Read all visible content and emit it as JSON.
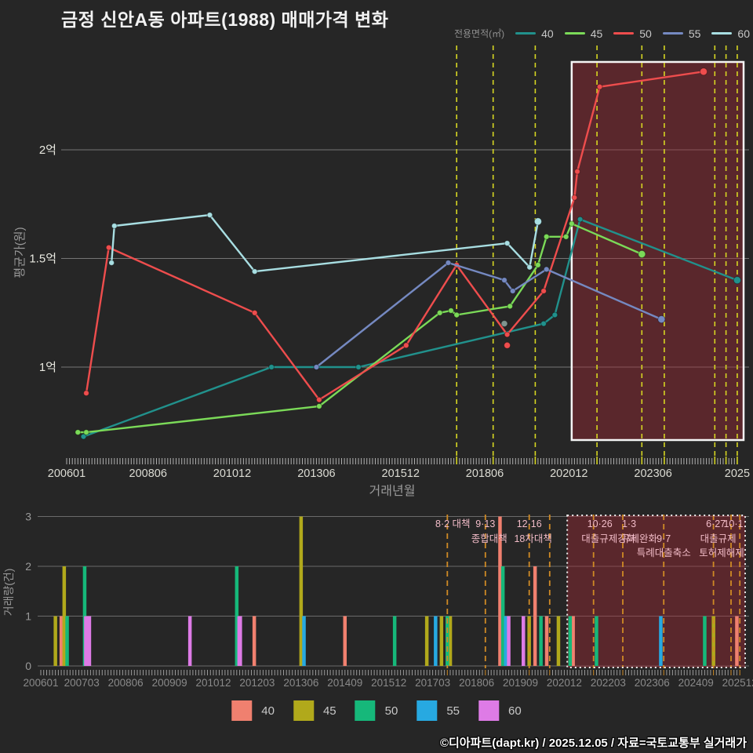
{
  "title": "금정 신안A동 아파트(1988) 매매가격 변화",
  "footer": "©디아파트(dapt.kr) / 2025.12.05 / 자료=국토교통부 실거래가",
  "top_legend": {
    "label": "전용면적(㎡)",
    "items": [
      {
        "label": "40",
        "color": "#21918c"
      },
      {
        "label": "45",
        "color": "#7bda58"
      },
      {
        "label": "50",
        "color": "#ee4d4d"
      },
      {
        "label": "55",
        "color": "#7589c1"
      },
      {
        "label": "60",
        "color": "#a8dee2"
      }
    ]
  },
  "bottom_legend": [
    {
      "label": "40",
      "color": "#f0806f"
    },
    {
      "label": "45",
      "color": "#b1a91b"
    },
    {
      "label": "50",
      "color": "#16b87a"
    },
    {
      "label": "55",
      "color": "#27a9e1"
    },
    {
      "label": "60",
      "color": "#de7be6"
    }
  ],
  "chart_data": [
    {
      "type": "line",
      "title": "매매가격 변화 (평균가)",
      "xlabel": "거래년월",
      "ylabel": "평균가(원)",
      "ylim": [
        0.6,
        2.45
      ],
      "grid": true,
      "yticks": [
        {
          "v": 1,
          "label": "1억"
        },
        {
          "v": 1.5,
          "label": "1.5억"
        },
        {
          "v": 2,
          "label": "2억"
        }
      ],
      "xticks": [
        {
          "m": "200601",
          "label": "200601"
        },
        {
          "m": "200806",
          "label": "200806"
        },
        {
          "m": "201012",
          "label": "201012"
        },
        {
          "m": "201306",
          "label": "201306"
        },
        {
          "m": "201512",
          "label": "201512"
        },
        {
          "m": "201806",
          "label": "201806"
        },
        {
          "m": "202012",
          "label": "202012"
        },
        {
          "m": "202306",
          "label": "202306"
        },
        {
          "m": "202512",
          "label": "2025"
        }
      ],
      "series": [
        {
          "name": "40",
          "color": "#21918c",
          "points": [
            [
              "200607",
              0.68
            ],
            [
              "201202",
              1.0
            ],
            [
              "201306",
              1.0
            ],
            [
              "201409",
              1.0
            ],
            [
              "202003",
              1.2
            ],
            [
              "202007",
              1.24
            ],
            [
              "202104",
              1.68
            ],
            [
              "202512",
              1.4
            ]
          ]
        },
        {
          "name": "45",
          "color": "#7bda58",
          "points": [
            [
              "200605",
              0.7
            ],
            [
              "200608",
              0.7
            ],
            [
              "201307",
              0.82
            ],
            [
              "201702",
              1.25
            ],
            [
              "201706",
              1.26
            ],
            [
              "201708",
              1.24
            ],
            [
              "201903",
              1.28
            ],
            [
              "202001",
              1.47
            ],
            [
              "202004",
              1.6
            ],
            [
              "202011",
              1.6
            ],
            [
              "202101",
              1.66
            ],
            [
              "202302",
              1.52
            ]
          ]
        },
        {
          "name": "50",
          "color": "#ee4d4d",
          "points": [
            [
              "200608",
              0.88
            ],
            [
              "200704",
              1.55
            ],
            [
              "201108",
              1.25
            ],
            [
              "201307",
              0.85
            ],
            [
              "201602",
              1.1
            ],
            [
              "201708",
              1.47
            ],
            [
              "201902",
              1.15
            ],
            [
              "202003",
              1.35
            ],
            [
              "202102",
              1.78
            ],
            [
              "202103",
              1.9
            ],
            [
              "202111",
              2.29
            ],
            [
              "202412",
              2.36
            ]
          ]
        },
        {
          "name": "55",
          "color": "#7589c1",
          "points": [
            [
              "201306",
              1.0
            ],
            [
              "201705",
              1.48
            ],
            [
              "201901",
              1.4
            ],
            [
              "201904",
              1.35
            ],
            [
              "202004",
              1.45
            ],
            [
              "202309",
              1.22
            ]
          ]
        },
        {
          "name": "60",
          "color": "#a8dee2",
          "points": [
            [
              "200705",
              1.48
            ],
            [
              "200706",
              1.65
            ],
            [
              "201004",
              1.7
            ],
            [
              "201108",
              1.44
            ],
            [
              "201902",
              1.57
            ],
            [
              "201910",
              1.46
            ],
            [
              "202001",
              1.67
            ]
          ]
        }
      ],
      "scatter": [
        {
          "m": "201902",
          "v": 1.1,
          "color": "#ee4d4d"
        },
        {
          "m": "201901",
          "v": 1.2,
          "color": "#7f948f"
        }
      ],
      "vline_months": [
        "201708",
        "201809",
        "201912",
        "202110",
        "202302",
        "202310",
        "202504",
        "202508",
        "202512"
      ],
      "vline_color": "#d6d622",
      "highlight_rect": {
        "from": "202101",
        "fill": "rgba(163,40,52,0.42)",
        "border": "#f5f5f5",
        "style": "solid"
      }
    },
    {
      "type": "bar",
      "title": "거래량",
      "ylabel": "거래량(건)",
      "ylim": [
        0,
        3
      ],
      "yticks": [
        0,
        1,
        2,
        3
      ],
      "xticks": [
        "200601",
        "200703",
        "200806",
        "200909",
        "201012",
        "201203",
        "201306",
        "201409",
        "201512",
        "201703",
        "201806",
        "201909",
        "202012",
        "202203",
        "202306",
        "202409",
        "202512"
      ],
      "bar_colors": {
        "40": "#f0806f",
        "45": "#b1a91b",
        "50": "#16b87a",
        "55": "#27a9e1",
        "60": "#de7be6"
      },
      "bars": [
        {
          "m": "200606",
          "s": "45",
          "h": 1
        },
        {
          "m": "200608",
          "s": "40",
          "h": 1
        },
        {
          "m": "200609",
          "s": "45",
          "h": 2
        },
        {
          "m": "200610",
          "s": "50",
          "h": 1
        },
        {
          "m": "200704",
          "s": "50",
          "h": 2
        },
        {
          "m": "200705",
          "s": "60",
          "h": 1,
          "w": 9
        },
        {
          "m": "201004",
          "s": "60",
          "h": 1
        },
        {
          "m": "201108",
          "s": "50",
          "h": 2
        },
        {
          "m": "201109",
          "s": "60",
          "h": 1,
          "w": 6
        },
        {
          "m": "201202",
          "s": "40",
          "h": 1
        },
        {
          "m": "201306",
          "s": "45",
          "h": 3
        },
        {
          "m": "201307",
          "s": "55",
          "h": 1
        },
        {
          "m": "201409",
          "s": "40",
          "h": 1
        },
        {
          "m": "201602",
          "s": "50",
          "h": 1
        },
        {
          "m": "201701",
          "s": "45",
          "h": 1
        },
        {
          "m": "201704",
          "s": "55",
          "h": 1
        },
        {
          "m": "201706",
          "s": "45",
          "h": 1
        },
        {
          "m": "201708",
          "s": "50",
          "h": 1
        },
        {
          "m": "201709",
          "s": "45",
          "h": 1
        },
        {
          "m": "201902",
          "s": "40",
          "h": 3
        },
        {
          "m": "201903",
          "s": "50",
          "h": 2
        },
        {
          "m": "201904",
          "s": "55",
          "h": 1
        },
        {
          "m": "201905",
          "s": "60",
          "h": 1
        },
        {
          "m": "201910",
          "s": "60",
          "h": 1
        },
        {
          "m": "201912",
          "s": "45",
          "h": 1
        },
        {
          "m": "202002",
          "s": "40",
          "h": 2
        },
        {
          "m": "202004",
          "s": "50",
          "h": 1
        },
        {
          "m": "202006",
          "s": "40",
          "h": 1
        },
        {
          "m": "202010",
          "s": "45",
          "h": 1
        },
        {
          "m": "202102",
          "s": "50",
          "h": 1
        },
        {
          "m": "202103",
          "s": "40",
          "h": 1
        },
        {
          "m": "202111",
          "s": "50",
          "h": 1
        },
        {
          "m": "202309",
          "s": "55",
          "h": 1
        },
        {
          "m": "202412",
          "s": "50",
          "h": 1
        },
        {
          "m": "202503",
          "s": "45",
          "h": 1
        },
        {
          "m": "202511",
          "s": "40",
          "h": 1
        }
      ],
      "vline_months": [
        "201708",
        "201809",
        "201912",
        "202007",
        "202110",
        "202208",
        "202310",
        "202503",
        "202509",
        "202512"
      ],
      "vline_color": "#cf8a25",
      "annotations": [
        {
          "text": "8·2 대책",
          "m": "201708",
          "row": 1,
          "dx": 7
        },
        {
          "text": "9·13",
          "m": "201809",
          "row": 1,
          "dx": 0
        },
        {
          "text": "종합대책",
          "m": "201809",
          "row": 2,
          "dx": 5
        },
        {
          "text": "12·16",
          "m": "201912",
          "row": 1,
          "dx": 0
        },
        {
          "text": "18차대책",
          "m": "201912",
          "row": 2,
          "dx": 5
        },
        {
          "text": "10·26",
          "m": "202110",
          "row": 1,
          "dx": 8
        },
        {
          "text": "대출규제강화",
          "m": "202110",
          "row": 2,
          "dx": 19
        },
        {
          "text": "1·3",
          "m": "202208",
          "row": 1,
          "dx": 8
        },
        {
          "text": "규제완화",
          "m": "202208",
          "row": 2,
          "dx": 21
        },
        {
          "text": "9·7",
          "m": "202310",
          "row": 2,
          "dx": 0
        },
        {
          "text": "특례대출축소",
          "m": "202310",
          "row": 3,
          "dx": 0
        },
        {
          "text": "6·27",
          "m": "202503",
          "row": 1,
          "dx": 3
        },
        {
          "text": "대출규제",
          "m": "202503",
          "row": 2,
          "dx": 6
        },
        {
          "text": "10·1",
          "m": "202509",
          "row": 1,
          "dx": 3
        },
        {
          "text": "토허제해제",
          "m": "202509",
          "row": 3,
          "dx": -12
        }
      ],
      "annotation_color": "#f2bcc8",
      "highlight_rect": {
        "from": "202101",
        "fill": "rgba(163,40,52,0.42)",
        "border": "#ededed",
        "style": "dotted"
      }
    }
  ]
}
